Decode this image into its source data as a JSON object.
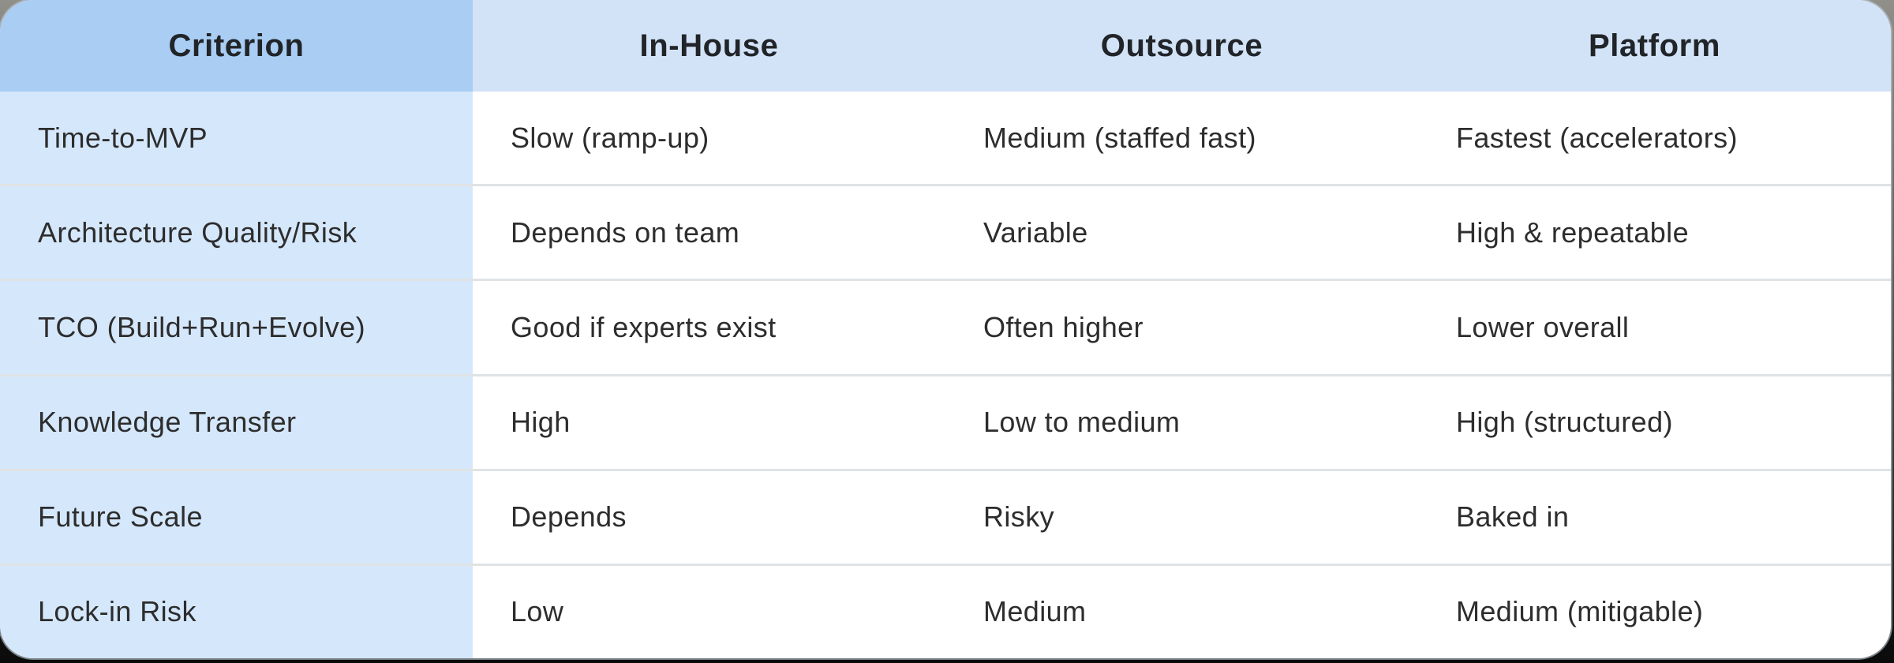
{
  "chart_data": {
    "type": "table",
    "columns": [
      "Criterion",
      "In-House",
      "Outsource",
      "Platform"
    ],
    "rows": [
      [
        "Time-to-MVP",
        "Slow (ramp-up)",
        "Medium (staffed fast)",
        "Fastest (accelerators)"
      ],
      [
        "Architecture Quality/Risk",
        "Depends on team",
        "Variable",
        "High & repeatable"
      ],
      [
        "TCO (Build+Run+Evolve)",
        "Good if experts exist",
        "Often higher",
        "Lower overall"
      ],
      [
        "Knowledge Transfer",
        "High",
        "Low to medium",
        "High (structured)"
      ],
      [
        "Future Scale",
        "Depends",
        "Risky",
        "Baked in"
      ],
      [
        "Lock-in Risk",
        "Low",
        "Medium",
        "Medium (mitigable)"
      ]
    ],
    "layout_hints": {
      "header_row": true,
      "first_column_highlighted": true,
      "equal_column_widths": true,
      "row_dividers": "between body rows only"
    }
  },
  "colors": {
    "header_first_bg": "#a9cdf3",
    "header_bg": "#d3e3f7",
    "criterion_col_bg": "#d5e7fb",
    "row_bg": "#ffffff",
    "divider": "rgba(84, 98, 112, 0.18)",
    "text": "#2d2d2d",
    "header_text": "#212428"
  }
}
